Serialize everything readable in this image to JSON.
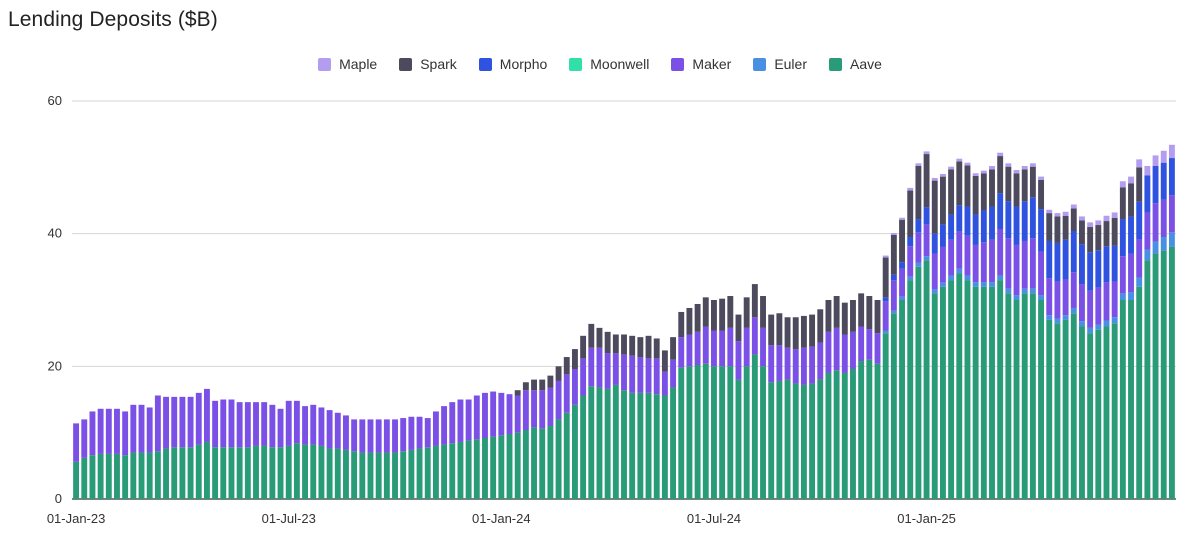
{
  "chart_data": {
    "type": "bar",
    "stacked": true,
    "title": "Lending Deposits ($B)",
    "xlabel": "",
    "ylabel": "",
    "ylim": [
      0,
      60
    ],
    "yticks": [
      0,
      20,
      40,
      60
    ],
    "x_tick_labels": [
      "01-Jan-23",
      "01-Jul-23",
      "01-Jan-24",
      "01-Jul-24",
      "01-Jan-25"
    ],
    "x_tick_indices": [
      0,
      26,
      52,
      78,
      104
    ],
    "grid": true,
    "legend_position": "top",
    "stack_order": [
      "Aave",
      "Euler",
      "Maker",
      "Moonwell",
      "Morpho",
      "Spark",
      "Maple"
    ],
    "legend_order": [
      "Maple",
      "Spark",
      "Morpho",
      "Moonwell",
      "Maker",
      "Euler",
      "Aave"
    ],
    "colors": {
      "Maple": "#b49cf0",
      "Spark": "#4c4a5c",
      "Morpho": "#2f52e0",
      "Moonwell": "#2fe0a8",
      "Maker": "#7b50e6",
      "Euler": "#4a90e2",
      "Aave": "#2a9b78"
    },
    "series": [
      {
        "name": "Aave",
        "values": [
          5.6,
          6.2,
          6.6,
          6.8,
          6.8,
          6.8,
          6.6,
          7.0,
          7.0,
          7.0,
          7.2,
          7.6,
          7.8,
          7.8,
          7.8,
          8.2,
          8.6,
          7.8,
          7.8,
          7.8,
          7.8,
          7.8,
          8.0,
          8.0,
          7.8,
          7.8,
          8.0,
          8.4,
          8.2,
          8.2,
          8.0,
          7.6,
          7.6,
          7.4,
          7.2,
          7.0,
          7.0,
          7.0,
          7.0,
          7.0,
          7.2,
          7.4,
          7.6,
          7.8,
          8.0,
          8.2,
          8.4,
          8.6,
          8.8,
          9.0,
          9.2,
          9.4,
          9.6,
          9.8,
          10.0,
          10.4,
          10.8,
          10.6,
          11.0,
          12.0,
          13.0,
          14.2,
          15.6,
          17.0,
          16.8,
          16.6,
          17.2,
          16.4,
          16.0,
          16.0,
          16.0,
          15.8,
          15.6,
          16.8,
          19.8,
          20.0,
          20.2,
          20.4,
          20.0,
          20.0,
          20.0,
          18.0,
          20.0,
          21.8,
          20.0,
          17.6,
          17.8,
          18.0,
          17.4,
          17.2,
          17.4,
          18.0,
          19.0,
          19.4,
          19.0,
          19.6,
          20.8,
          21.0,
          20.4,
          25.0,
          28.0,
          30.0,
          33.0,
          35.0,
          36.0,
          31.0,
          32.0,
          33.0,
          34.0,
          33.0,
          32.0,
          32.0,
          32.0,
          33.0,
          31.0,
          30.0,
          31.0,
          31.0,
          30.0,
          27.0,
          26.5,
          27.0,
          28.0,
          26.0,
          25.0,
          25.5,
          26.0,
          26.5,
          30.0,
          30.0,
          32.0,
          36.0,
          37.0,
          37.5,
          38.0
        ]
      },
      {
        "name": "Euler",
        "values": [
          0,
          0,
          0,
          0,
          0,
          0,
          0,
          0,
          0,
          0,
          0,
          0,
          0,
          0,
          0,
          0,
          0,
          0,
          0,
          0,
          0,
          0,
          0,
          0,
          0,
          0,
          0,
          0,
          0,
          0,
          0,
          0,
          0,
          0,
          0,
          0,
          0,
          0,
          0,
          0,
          0,
          0,
          0,
          0,
          0,
          0,
          0,
          0,
          0,
          0,
          0,
          0,
          0,
          0,
          0,
          0,
          0,
          0,
          0,
          0,
          0,
          0,
          0,
          0,
          0,
          0,
          0,
          0,
          0,
          0,
          0,
          0,
          0,
          0,
          0,
          0,
          0,
          0,
          0,
          0,
          0,
          0,
          0,
          0,
          0,
          0,
          0,
          0,
          0,
          0,
          0,
          0,
          0,
          0,
          0,
          0,
          0,
          0,
          0,
          0.4,
          0.4,
          0.5,
          0.5,
          0.6,
          0.6,
          0.6,
          0.6,
          0.7,
          0.7,
          0.7,
          0.7,
          0.7,
          0.7,
          0.7,
          0.7,
          0.7,
          0.7,
          0.7,
          0.7,
          0.7,
          0.7,
          0.7,
          0.8,
          0.8,
          0.8,
          0.8,
          0.9,
          0.9,
          1.0,
          1.2,
          1.4,
          1.6,
          1.8,
          2.0,
          2.2
        ]
      },
      {
        "name": "Maker",
        "values": [
          5.8,
          5.8,
          6.6,
          6.8,
          6.8,
          6.8,
          6.6,
          7.2,
          7.2,
          6.8,
          8.4,
          7.8,
          7.6,
          7.6,
          7.6,
          7.8,
          8.0,
          7.0,
          7.2,
          7.2,
          6.8,
          6.8,
          6.6,
          6.6,
          6.4,
          5.8,
          6.8,
          6.4,
          5.8,
          6.0,
          5.8,
          5.8,
          5.4,
          5.2,
          4.8,
          5.0,
          5.0,
          5.0,
          5.0,
          5.0,
          5.0,
          5.0,
          4.8,
          4.4,
          5.2,
          5.8,
          6.2,
          6.4,
          6.2,
          6.6,
          6.8,
          6.8,
          6.4,
          6.0,
          5.6,
          6.0,
          5.6,
          5.8,
          5.8,
          5.8,
          5.8,
          5.4,
          5.6,
          5.8,
          6.0,
          5.4,
          4.8,
          5.4,
          5.6,
          5.4,
          5.2,
          5.4,
          3.6,
          4.2,
          4.6,
          4.8,
          5.0,
          5.6,
          5.4,
          5.4,
          5.8,
          5.8,
          5.8,
          5.6,
          5.8,
          5.6,
          5.4,
          4.8,
          5.2,
          5.6,
          5.6,
          5.6,
          6.2,
          6.4,
          5.8,
          5.6,
          5.2,
          4.6,
          4.6,
          4.4,
          4.6,
          4.2,
          4.6,
          4.6,
          4.8,
          5.4,
          5.4,
          5.4,
          5.6,
          6.0,
          5.6,
          6.0,
          6.4,
          7.0,
          7.6,
          7.6,
          7.2,
          7.6,
          6.6,
          5.6,
          5.6,
          5.4,
          5.4,
          5.6,
          5.6,
          5.6,
          5.8,
          5.4,
          5.6,
          5.8,
          5.8,
          5.6,
          5.8,
          5.6,
          5.6
        ]
      },
      {
        "name": "Moonwell",
        "values": [
          0,
          0,
          0,
          0,
          0,
          0,
          0,
          0,
          0,
          0,
          0,
          0,
          0,
          0,
          0,
          0,
          0,
          0,
          0,
          0,
          0,
          0,
          0,
          0,
          0,
          0,
          0,
          0,
          0,
          0,
          0,
          0,
          0,
          0,
          0,
          0,
          0,
          0,
          0,
          0,
          0,
          0,
          0,
          0,
          0,
          0,
          0,
          0,
          0,
          0,
          0,
          0,
          0,
          0,
          0,
          0,
          0,
          0,
          0,
          0,
          0,
          0,
          0,
          0,
          0,
          0,
          0,
          0,
          0,
          0,
          0,
          0,
          0,
          0,
          0,
          0,
          0,
          0,
          0,
          0,
          0,
          0,
          0,
          0,
          0,
          0,
          0,
          0,
          0,
          0,
          0,
          0,
          0,
          0,
          0,
          0,
          0,
          0,
          0,
          0,
          0,
          0,
          0,
          0,
          0,
          0,
          0,
          0,
          0,
          0,
          0,
          0,
          0,
          0,
          0,
          0,
          0,
          0,
          0,
          0,
          0,
          0,
          0,
          0,
          0,
          0,
          0,
          0,
          0,
          0,
          0,
          0,
          0,
          0,
          0
        ]
      },
      {
        "name": "Morpho",
        "values": [
          0,
          0,
          0,
          0,
          0,
          0,
          0,
          0,
          0,
          0,
          0,
          0,
          0,
          0,
          0,
          0,
          0,
          0,
          0,
          0,
          0,
          0,
          0,
          0,
          0,
          0,
          0,
          0,
          0,
          0,
          0,
          0,
          0,
          0,
          0,
          0,
          0,
          0,
          0,
          0,
          0,
          0,
          0,
          0,
          0,
          0,
          0,
          0,
          0,
          0,
          0,
          0,
          0,
          0,
          0,
          0,
          0,
          0,
          0,
          0,
          0,
          0,
          0,
          0,
          0,
          0,
          0,
          0,
          0,
          0,
          0,
          0,
          0,
          0,
          0,
          0,
          0,
          0,
          0,
          0,
          0,
          0,
          0,
          0,
          0,
          0,
          0,
          0,
          0,
          0,
          0,
          0,
          0,
          0,
          0,
          0,
          0,
          0,
          0,
          0.6,
          0.8,
          1.0,
          1.4,
          2.0,
          2.6,
          3.0,
          3.4,
          3.8,
          4.0,
          4.4,
          4.6,
          4.8,
          5.0,
          5.4,
          5.6,
          5.8,
          6.0,
          6.2,
          6.4,
          5.6,
          5.8,
          6.0,
          6.2,
          6.0,
          5.8,
          5.6,
          5.4,
          5.4,
          5.6,
          5.6,
          5.6,
          5.6,
          5.6,
          5.6,
          5.6
        ]
      },
      {
        "name": "Spark",
        "values": [
          0,
          0,
          0,
          0,
          0,
          0,
          0,
          0,
          0,
          0,
          0,
          0,
          0,
          0,
          0,
          0,
          0,
          0,
          0,
          0,
          0,
          0,
          0,
          0,
          0,
          0,
          0,
          0,
          0,
          0,
          0,
          0,
          0,
          0,
          0,
          0,
          0,
          0,
          0,
          0,
          0,
          0,
          0,
          0,
          0,
          0,
          0,
          0,
          0,
          0,
          0,
          0,
          0,
          0,
          0.8,
          1.2,
          1.6,
          1.6,
          1.8,
          2.2,
          2.6,
          3.0,
          3.4,
          3.6,
          3.0,
          3.2,
          2.8,
          3.0,
          3.0,
          3.0,
          3.4,
          3.0,
          3.2,
          3.4,
          3.8,
          4.0,
          4.2,
          4.4,
          4.6,
          4.8,
          4.8,
          4.0,
          4.6,
          5.0,
          4.8,
          4.6,
          4.8,
          4.6,
          4.8,
          4.8,
          4.8,
          5.0,
          4.8,
          4.8,
          4.8,
          4.8,
          5.0,
          5.0,
          5.0,
          6.0,
          6.0,
          6.4,
          7.0,
          8.0,
          8.0,
          8.0,
          7.2,
          6.8,
          6.6,
          6.2,
          5.8,
          5.6,
          5.6,
          5.6,
          5.2,
          5.0,
          4.8,
          4.6,
          4.4,
          4.2,
          4.0,
          3.6,
          3.4,
          3.6,
          3.8,
          3.8,
          3.8,
          4.2,
          4.8,
          5.0,
          5.2
        ]
      },
      {
        "name": "Maple",
        "values": [
          0,
          0,
          0,
          0,
          0,
          0,
          0,
          0,
          0,
          0,
          0,
          0,
          0,
          0,
          0,
          0,
          0,
          0,
          0,
          0,
          0,
          0,
          0,
          0,
          0,
          0,
          0,
          0,
          0,
          0,
          0,
          0,
          0,
          0,
          0,
          0,
          0,
          0,
          0,
          0,
          0,
          0,
          0,
          0,
          0,
          0,
          0,
          0,
          0,
          0,
          0,
          0,
          0,
          0,
          0,
          0,
          0,
          0,
          0,
          0,
          0,
          0,
          0,
          0,
          0,
          0,
          0,
          0,
          0,
          0,
          0,
          0,
          0,
          0,
          0,
          0,
          0,
          0,
          0,
          0,
          0,
          0,
          0,
          0,
          0,
          0,
          0,
          0,
          0,
          0,
          0,
          0,
          0,
          0,
          0,
          0,
          0,
          0,
          0,
          0.3,
          0.3,
          0.3,
          0.4,
          0.4,
          0.4,
          0.4,
          0.4,
          0.4,
          0.4,
          0.4,
          0.4,
          0.4,
          0.5,
          0.5,
          0.5,
          0.5,
          0.5,
          0.5,
          0.5,
          0.5,
          0.5,
          0.6,
          0.6,
          0.6,
          0.7,
          0.7,
          0.8,
          0.8,
          0.9,
          1.0,
          1.2,
          1.4,
          1.6,
          1.8,
          2.0
        ]
      }
    ]
  }
}
